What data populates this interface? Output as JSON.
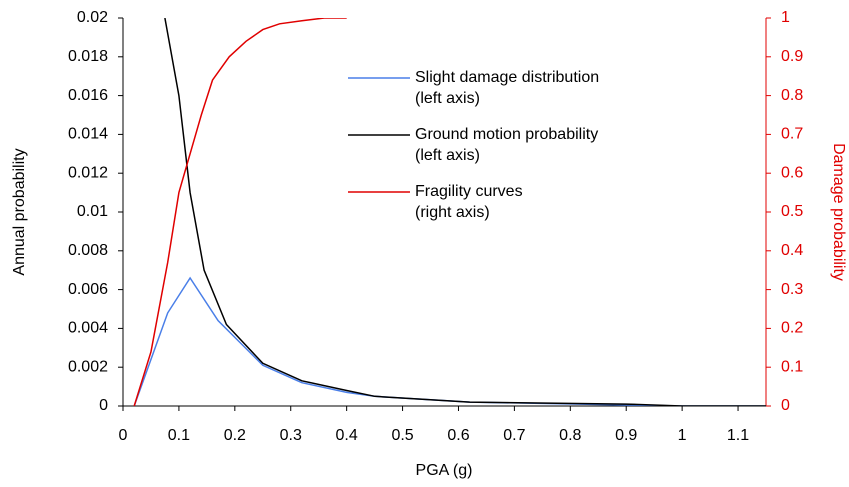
{
  "chart_data": {
    "type": "line",
    "x_label": "PGA (g)",
    "y_label": "Annual probability",
    "y2_label": "Damage probability",
    "xlim": [
      0,
      1.15
    ],
    "xticks": [
      0,
      0.1,
      0.2,
      0.3,
      0.4,
      0.5,
      0.6,
      0.7,
      0.8,
      0.9,
      1,
      1.1
    ],
    "ylim": [
      0,
      0.02
    ],
    "yticks": [
      0,
      0.002,
      0.004,
      0.006,
      0.008,
      0.01,
      0.012,
      0.014,
      0.016,
      0.018,
      0.02
    ],
    "y2lim": [
      0,
      1
    ],
    "y2ticks": [
      0,
      0.1,
      0.2,
      0.3,
      0.4,
      0.5,
      0.6,
      0.7,
      0.8,
      0.9,
      1
    ],
    "y2_color": "#e00000",
    "series": [
      {
        "name": "Slight damage distribution (left axis)",
        "color": "#4a7fe8",
        "x": [
          0.02,
          0.08,
          0.12,
          0.17,
          0.25,
          0.32,
          0.4,
          0.45,
          0.62,
          0.9,
          1.0,
          1.15
        ],
        "values": [
          0,
          0.0048,
          0.0066,
          0.0044,
          0.0021,
          0.0012,
          0.0007,
          0.0005,
          0.0002,
          5e-05,
          0,
          0
        ]
      },
      {
        "name": "Ground motion probability (left axis)",
        "color": "#000000",
        "x": [
          0.075,
          0.1,
          0.12,
          0.145,
          0.185,
          0.25,
          0.32,
          0.4,
          0.45,
          0.62,
          0.9,
          1.0,
          1.15
        ],
        "values": [
          0.02,
          0.016,
          0.011,
          0.007,
          0.0042,
          0.0022,
          0.0013,
          0.0008,
          0.0005,
          0.0002,
          0.0001,
          0,
          0
        ]
      },
      {
        "name": "Fragility curves (right axis)",
        "color": "#e00000",
        "axis": "y2",
        "x": [
          0.02,
          0.05,
          0.08,
          0.1,
          0.14,
          0.16,
          0.19,
          0.22,
          0.25,
          0.28,
          0.32,
          0.36,
          0.4
        ],
        "values": [
          0,
          0.14,
          0.37,
          0.55,
          0.75,
          0.84,
          0.9,
          0.94,
          0.97,
          0.985,
          0.993,
          1,
          1
        ]
      }
    ]
  }
}
